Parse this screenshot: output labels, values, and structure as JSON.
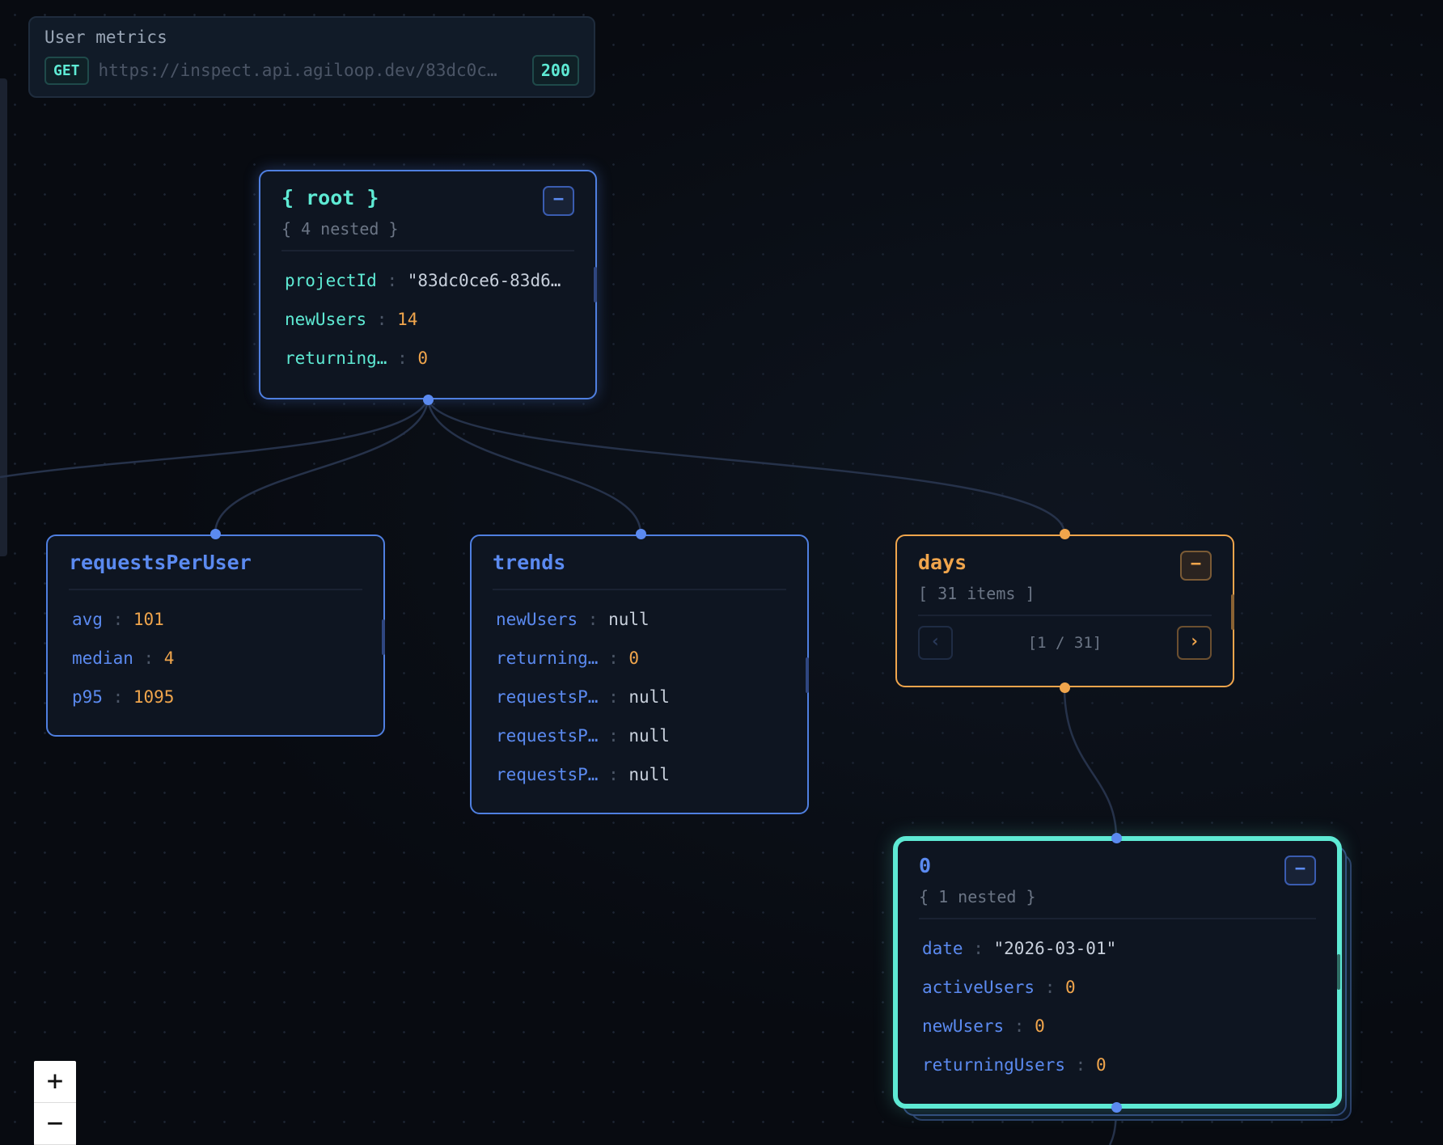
{
  "header": {
    "title": "User metrics",
    "method": "GET",
    "url": "https://inspect.api.agiloop.dev/83dc0c…",
    "status": "200"
  },
  "colors": {
    "object_accent": "#5b8af0",
    "array_accent": "#f0a54c",
    "selected_accent": "#5eead4",
    "background": "#080b11"
  },
  "nodes": {
    "root": {
      "title": "{ root }",
      "summary": "{ 4 nested }",
      "collapse_icon": "minus-icon",
      "fields": [
        {
          "key": "projectId",
          "value": "\"83dc0ce6-83d6…"
        },
        {
          "key": "newUsers",
          "value": "14"
        },
        {
          "key": "returning…",
          "value": "0"
        }
      ]
    },
    "requestsPerUser": {
      "title": "requestsPerUser",
      "fields": [
        {
          "key": "avg",
          "value": "101"
        },
        {
          "key": "median",
          "value": "4"
        },
        {
          "key": "p95",
          "value": "1095"
        }
      ]
    },
    "trends": {
      "title": "trends",
      "fields": [
        {
          "key": "newUsers",
          "value": "null"
        },
        {
          "key": "returning…",
          "value": "0"
        },
        {
          "key": "requestsP…",
          "value": "null"
        },
        {
          "key": "requestsP…",
          "value": "null"
        },
        {
          "key": "requestsP…",
          "value": "null"
        }
      ]
    },
    "days": {
      "title": "days",
      "summary": "[ 31 items ]",
      "pager": "[1 / 31]",
      "prev": "‹",
      "next": "›"
    },
    "item0": {
      "title": "0",
      "summary": "{ 1 nested }",
      "fields": [
        {
          "key": "date",
          "value": "\"2026-03-01\""
        },
        {
          "key": "activeUsers",
          "value": "0"
        },
        {
          "key": "newUsers",
          "value": "0"
        },
        {
          "key": "returningUsers",
          "value": "0"
        }
      ]
    }
  },
  "zoom": {
    "in": "+",
    "out": "−"
  },
  "collapse_label": "−"
}
